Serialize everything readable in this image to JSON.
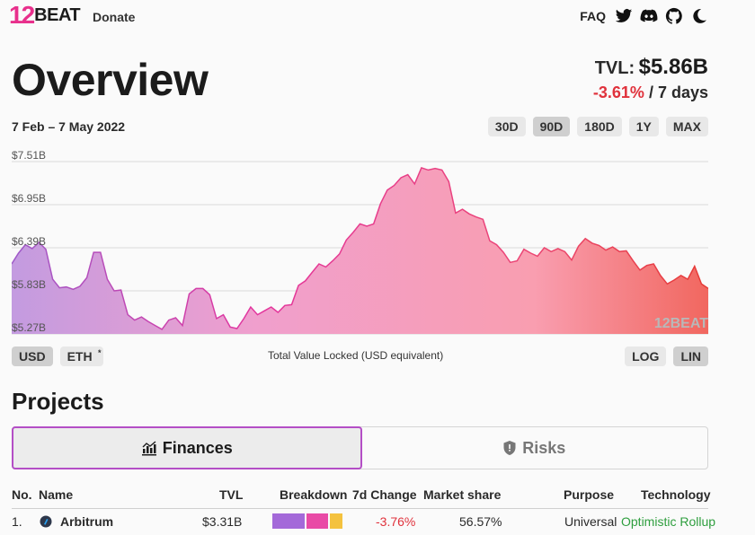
{
  "header": {
    "logo_num": "12",
    "logo_word": "BEAT",
    "donate_label": "Donate",
    "faq_label": "FAQ",
    "icons": [
      "twitter-icon",
      "discord-icon",
      "github-icon",
      "dark-mode-icon"
    ]
  },
  "overview": {
    "title": "Overview",
    "tvl_label": "TVL:",
    "tvl_value": "$5.86B",
    "change_value": "-3.61%",
    "change_period": "/ 7 days",
    "date_range": "7 Feb – 7 May 2022",
    "ranges": [
      "30D",
      "90D",
      "180D",
      "1Y",
      "MAX"
    ],
    "active_range": "90D"
  },
  "chart_data": {
    "type": "area",
    "y_ticks": [
      "$7.51B",
      "$6.95B",
      "$6.39B",
      "$5.83B",
      "$5.27B"
    ],
    "ylim": [
      5.27,
      7.51
    ],
    "values": [
      6.18,
      6.32,
      6.43,
      6.38,
      6.46,
      6.37,
      5.98,
      5.87,
      5.88,
      5.85,
      5.89,
      6.0,
      6.33,
      6.33,
      5.98,
      5.83,
      5.84,
      5.52,
      5.45,
      5.49,
      5.43,
      5.38,
      5.33,
      5.45,
      5.48,
      5.38,
      5.79,
      5.86,
      5.86,
      5.78,
      5.47,
      5.52,
      5.36,
      5.34,
      5.47,
      5.62,
      5.52,
      5.57,
      5.62,
      5.55,
      5.64,
      5.65,
      5.9,
      5.96,
      6.07,
      6.18,
      6.14,
      6.22,
      6.31,
      6.49,
      6.59,
      6.7,
      6.67,
      6.7,
      6.96,
      7.14,
      7.2,
      7.3,
      7.34,
      7.22,
      7.43,
      7.4,
      7.42,
      7.4,
      7.25,
      6.84,
      6.89,
      6.83,
      6.79,
      6.76,
      6.48,
      6.43,
      6.33,
      6.2,
      6.22,
      6.37,
      6.32,
      6.28,
      6.39,
      6.34,
      6.38,
      6.34,
      6.23,
      6.41,
      6.51,
      6.45,
      6.42,
      6.36,
      6.4,
      6.34,
      6.35,
      6.22,
      6.1,
      6.16,
      6.18,
      6.03,
      5.92,
      5.97,
      6.03,
      5.98,
      6.15,
      5.92,
      5.86
    ],
    "watermark": "12BEAT",
    "gradient_stops": [
      "#c39be0",
      "#f09fcd",
      "#f99eb0",
      "#f1675f"
    ],
    "line_stops": [
      "#9e59c9",
      "#e3359e",
      "#ec4673",
      "#e63b35"
    ]
  },
  "chart_controls": {
    "units": [
      "USD",
      "ETH"
    ],
    "active_unit": "USD",
    "eth_sup": "*",
    "caption": "Total Value Locked (USD equivalent)",
    "scales": [
      "LOG",
      "LIN"
    ],
    "active_scale": "LIN"
  },
  "projects": {
    "heading": "Projects",
    "tabs": [
      "Finances",
      "Risks"
    ],
    "active_tab": "Finances",
    "columns": [
      "No.",
      "Name",
      "TVL",
      "Breakdown",
      "7d Change",
      "Market share",
      "Purpose",
      "Technology"
    ],
    "rows": [
      {
        "no": "1.",
        "name": "Arbitrum",
        "tvl": "$3.31B",
        "change": "-3.76%",
        "share": "56.57%",
        "purpose": "Universal",
        "technology": "Optimistic Rollup",
        "breakdown": [
          0.47,
          0.32,
          0.19
        ],
        "breakdown_colors": [
          "#a469d9",
          "#e94aa6",
          "#f4c23e"
        ]
      }
    ]
  }
}
